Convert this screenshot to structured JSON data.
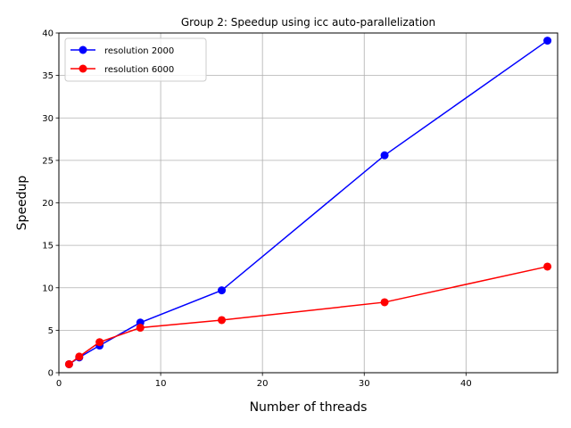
{
  "chart_data": {
    "type": "line",
    "title": "Group 2: Speedup using icc auto-parallelization",
    "xlabel": "Number of threads",
    "ylabel": "Speedup",
    "xlim": [
      0,
      49
    ],
    "ylim": [
      0,
      40
    ],
    "xticks": [
      0,
      10,
      20,
      30,
      40
    ],
    "yticks": [
      0,
      5,
      10,
      15,
      20,
      25,
      30,
      35,
      40
    ],
    "grid": true,
    "legend_position": "top-left",
    "series": [
      {
        "name": "resolution 2000",
        "color": "#0000ff",
        "x": [
          1,
          2,
          4,
          8,
          16,
          32,
          48
        ],
        "y": [
          1.0,
          1.8,
          3.2,
          5.9,
          9.7,
          25.6,
          39.1
        ]
      },
      {
        "name": "resolution 6000",
        "color": "#ff0000",
        "x": [
          1,
          2,
          4,
          8,
          16,
          32,
          48
        ],
        "y": [
          1.0,
          1.9,
          3.6,
          5.3,
          6.2,
          8.3,
          12.5
        ]
      }
    ]
  }
}
